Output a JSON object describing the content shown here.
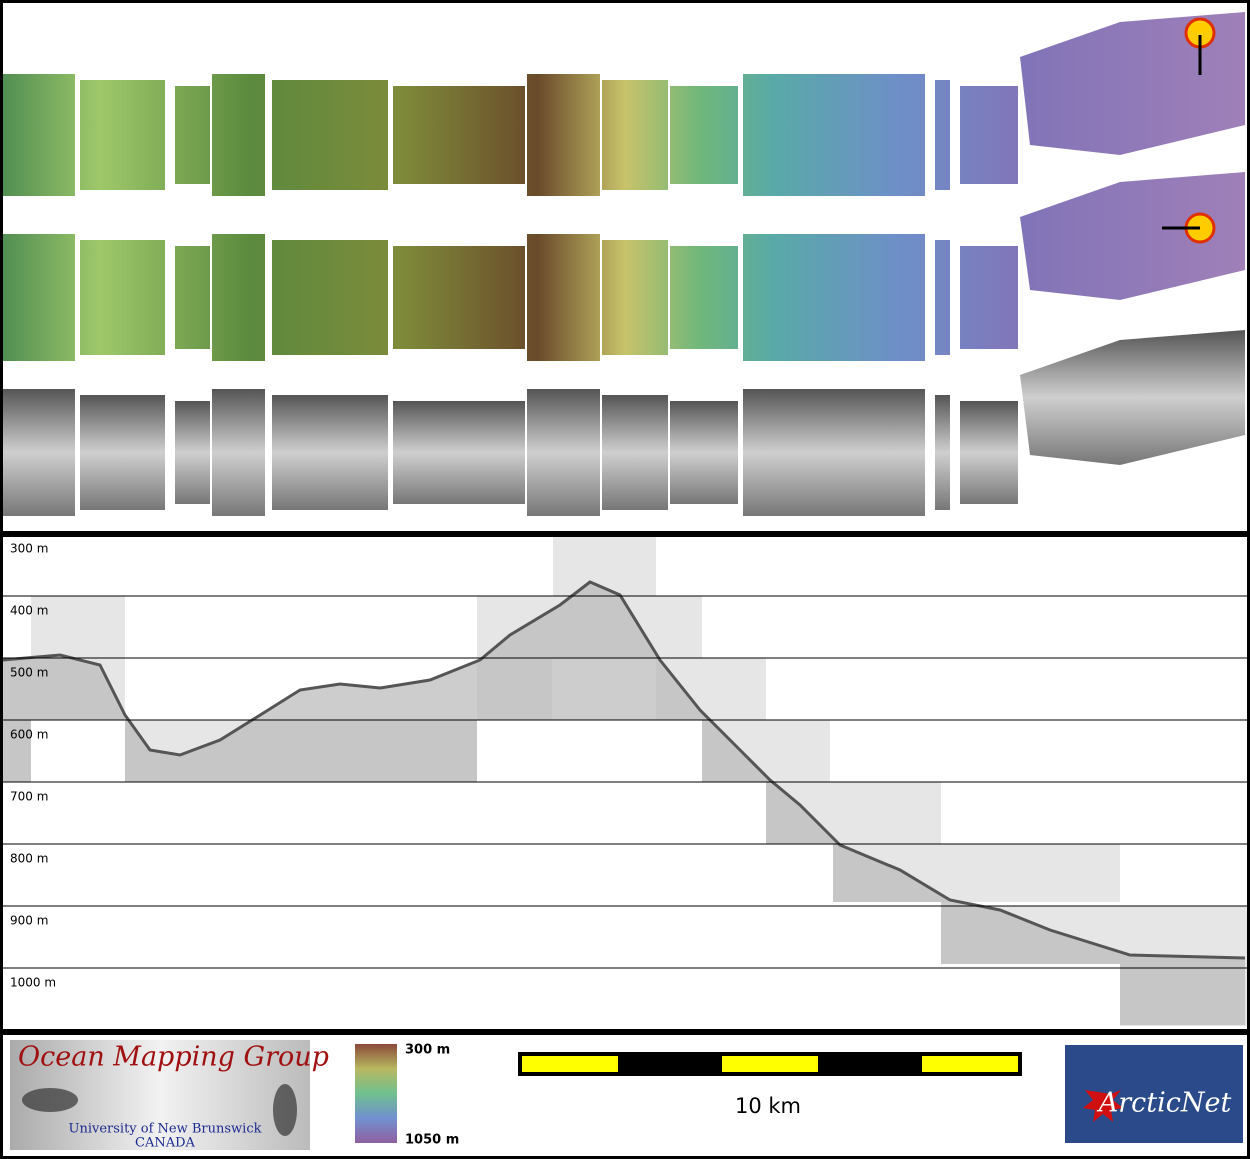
{
  "profile": {
    "depth_labels": [
      "300 m",
      "400 m",
      "500 m",
      "600 m",
      "700 m",
      "800 m",
      "900 m",
      "1000 m"
    ]
  },
  "footer": {
    "logo": {
      "title": "Ocean Mapping Group",
      "university": "University of New Brunswick",
      "country": "CANADA"
    },
    "colorbar": {
      "top_label": "300 m",
      "bottom_label": "1050 m"
    },
    "scale_bar": {
      "label": "10 km"
    },
    "partner_logo": {
      "name": "ArcticNet"
    }
  }
}
